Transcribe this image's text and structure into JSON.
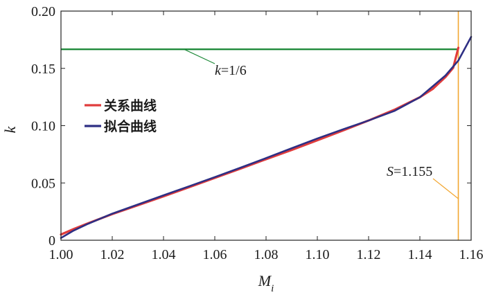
{
  "chart_data": {
    "type": "line",
    "xlabel": "M",
    "xlabel_sub": "i",
    "ylabel": "k",
    "xlim": [
      1.0,
      1.16
    ],
    "ylim": [
      0,
      0.2
    ],
    "x_ticks": [
      1.0,
      1.02,
      1.04,
      1.06,
      1.08,
      1.1,
      1.12,
      1.14,
      1.16
    ],
    "x_tick_labels": [
      "1.00",
      "1.02",
      "1.04",
      "1.06",
      "1.08",
      "1.10",
      "1.12",
      "1.14",
      "1.16"
    ],
    "y_ticks": [
      0,
      0.05,
      0.1,
      0.15,
      0.2
    ],
    "y_tick_labels": [
      "0",
      "0.05",
      "0.10",
      "0.15",
      "0.20"
    ],
    "legend_position": "left",
    "series": [
      {
        "name": "关系曲线",
        "color": "#e03c3c",
        "x": [
          1.0,
          1.005,
          1.01,
          1.02,
          1.03,
          1.04,
          1.05,
          1.06,
          1.07,
          1.08,
          1.09,
          1.1,
          1.11,
          1.12,
          1.13,
          1.14,
          1.145,
          1.15,
          1.153,
          1.155
        ],
        "y": [
          0.005,
          0.0098,
          0.0143,
          0.0228,
          0.0305,
          0.0383,
          0.0463,
          0.0544,
          0.0625,
          0.0707,
          0.0788,
          0.0872,
          0.0958,
          0.1045,
          0.1138,
          0.1248,
          0.132,
          0.1425,
          0.1505,
          0.168
        ]
      },
      {
        "name": "拟合曲线",
        "color": "#2e2f84",
        "x": [
          1.0,
          1.005,
          1.01,
          1.02,
          1.03,
          1.04,
          1.05,
          1.06,
          1.07,
          1.08,
          1.09,
          1.1,
          1.11,
          1.12,
          1.13,
          1.14,
          1.15,
          1.155,
          1.16
        ],
        "y": [
          0.002,
          0.0085,
          0.0138,
          0.0232,
          0.0312,
          0.0392,
          0.0471,
          0.0551,
          0.0633,
          0.0717,
          0.0803,
          0.0888,
          0.0968,
          0.1045,
          0.1128,
          0.1248,
          0.1438,
          0.1568,
          0.1775
        ]
      }
    ],
    "reference_lines": [
      {
        "orientation": "horizontal",
        "value": 0.16667,
        "color": "#1f8a3a",
        "label_italic": "k",
        "label_rest": "=1/6"
      },
      {
        "orientation": "vertical",
        "value": 1.155,
        "color": "#f2a630",
        "label_italic": "S",
        "label_rest": "=1.155"
      }
    ]
  }
}
